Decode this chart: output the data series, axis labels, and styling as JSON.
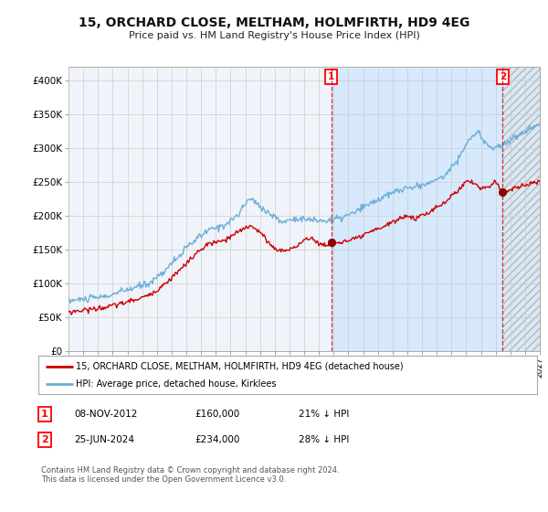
{
  "title": "15, ORCHARD CLOSE, MELTHAM, HOLMFIRTH, HD9 4EG",
  "subtitle": "Price paid vs. HM Land Registry's House Price Index (HPI)",
  "ylim": [
    0,
    420000
  ],
  "yticks": [
    0,
    50000,
    100000,
    150000,
    200000,
    250000,
    300000,
    350000,
    400000
  ],
  "ytick_labels": [
    "£0",
    "£50K",
    "£100K",
    "£150K",
    "£200K",
    "£250K",
    "£300K",
    "£350K",
    "£400K"
  ],
  "x_start_year": 1995,
  "x_end_year": 2027,
  "hpi_color": "#6baed6",
  "price_color": "#cc0000",
  "sale1_x": 2012.854,
  "sale1_price": 160000,
  "sale2_x": 2024.479,
  "sale2_price": 234000,
  "legend_property": "15, ORCHARD CLOSE, MELTHAM, HOLMFIRTH, HD9 4EG (detached house)",
  "legend_hpi": "HPI: Average price, detached house, Kirklees",
  "note1_date": "08-NOV-2012",
  "note1_price": "£160,000",
  "note1_pct": "21% ↓ HPI",
  "note2_date": "25-JUN-2024",
  "note2_price": "£234,000",
  "note2_pct": "28% ↓ HPI",
  "footer": "Contains HM Land Registry data © Crown copyright and database right 2024.\nThis data is licensed under the Open Government Licence v3.0.",
  "grid_color": "#cccccc",
  "bg_color": "#ffffff",
  "plot_bg_color": "#f0f4fa",
  "shade_color": "#ddeeff",
  "hatch_color": "#ccccdd"
}
